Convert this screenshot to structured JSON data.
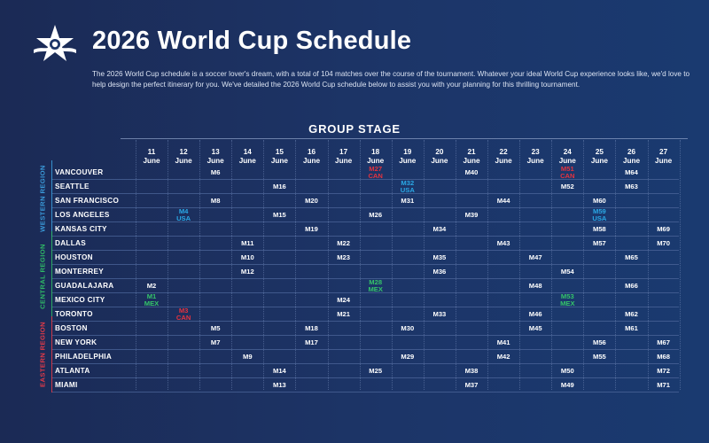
{
  "header": {
    "title": "2026 World Cup Schedule",
    "intro": "The 2026 World Cup schedule is a soccer lover's dream, with a total of 104 matches over the course of the tournament. Whatever your ideal World Cup experience looks like, we'd love to help design the perfect itinerary for you. We've detailed the 2026 World Cup schedule below to assist you with your planning for this thrilling tournament."
  },
  "schedule": {
    "section_title": "GROUP STAGE",
    "dates": [
      {
        "day": "11",
        "month": "June"
      },
      {
        "day": "12",
        "month": "June"
      },
      {
        "day": "13",
        "month": "June"
      },
      {
        "day": "14",
        "month": "June"
      },
      {
        "day": "15",
        "month": "June"
      },
      {
        "day": "16",
        "month": "June"
      },
      {
        "day": "17",
        "month": "June"
      },
      {
        "day": "18",
        "month": "June"
      },
      {
        "day": "19",
        "month": "June"
      },
      {
        "day": "20",
        "month": "June"
      },
      {
        "day": "21",
        "month": "June"
      },
      {
        "day": "22",
        "month": "June"
      },
      {
        "day": "23",
        "month": "June"
      },
      {
        "day": "24",
        "month": "June"
      },
      {
        "day": "25",
        "month": "June"
      },
      {
        "day": "26",
        "month": "June"
      },
      {
        "day": "27",
        "month": "June"
      }
    ],
    "regions": [
      {
        "name": "WESTERN REGION",
        "color": "#3a9ad9",
        "first_row": 0,
        "last_row": 4
      },
      {
        "name": "CENTRAL REGION",
        "color": "#2fb866",
        "first_row": 5,
        "last_row": 10
      },
      {
        "name": "EASTERN REGION",
        "color": "#e03a48",
        "first_row": 11,
        "last_row": 15
      }
    ],
    "host_colors": {
      "CAN": "#e5333f",
      "USA": "#2aa8e6",
      "MEX": "#35c46a"
    },
    "cities": [
      {
        "name": "VANCOUVER",
        "matches": [
          {
            "day": "13",
            "label": "M6"
          },
          {
            "day": "18",
            "label": "M27",
            "sub": "CAN",
            "host": "CAN"
          },
          {
            "day": "21",
            "label": "M40"
          },
          {
            "day": "24",
            "label": "M51",
            "sub": "CAN",
            "host": "CAN"
          },
          {
            "day": "26",
            "label": "M64"
          }
        ]
      },
      {
        "name": "SEATTLE",
        "matches": [
          {
            "day": "15",
            "label": "M16"
          },
          {
            "day": "19",
            "label": "M32",
            "sub": "USA",
            "host": "USA"
          },
          {
            "day": "24",
            "label": "M52"
          },
          {
            "day": "26",
            "label": "M63"
          }
        ]
      },
      {
        "name": "SAN FRANCISCO",
        "matches": [
          {
            "day": "13",
            "label": "M8"
          },
          {
            "day": "16",
            "label": "M20"
          },
          {
            "day": "19",
            "label": "M31"
          },
          {
            "day": "22",
            "label": "M44"
          },
          {
            "day": "25",
            "label": "M60"
          }
        ]
      },
      {
        "name": "LOS ANGELES",
        "matches": [
          {
            "day": "12",
            "label": "M4",
            "sub": "USA",
            "host": "USA"
          },
          {
            "day": "15",
            "label": "M15"
          },
          {
            "day": "18",
            "label": "M26"
          },
          {
            "day": "21",
            "label": "M39"
          },
          {
            "day": "25",
            "label": "M59",
            "sub": "USA",
            "host": "USA"
          }
        ]
      },
      {
        "name": "KANSAS CITY",
        "matches": [
          {
            "day": "16",
            "label": "M19"
          },
          {
            "day": "20",
            "label": "M34"
          },
          {
            "day": "25",
            "label": "M58"
          },
          {
            "day": "27",
            "label": "M69"
          }
        ]
      },
      {
        "name": "DALLAS",
        "matches": [
          {
            "day": "14",
            "label": "M11"
          },
          {
            "day": "17",
            "label": "M22"
          },
          {
            "day": "22",
            "label": "M43"
          },
          {
            "day": "25",
            "label": "M57"
          },
          {
            "day": "27",
            "label": "M70"
          }
        ]
      },
      {
        "name": "HOUSTON",
        "matches": [
          {
            "day": "14",
            "label": "M10"
          },
          {
            "day": "17",
            "label": "M23"
          },
          {
            "day": "20",
            "label": "M35"
          },
          {
            "day": "23",
            "label": "M47"
          },
          {
            "day": "26",
            "label": "M65"
          }
        ]
      },
      {
        "name": "MONTERREY",
        "matches": [
          {
            "day": "14",
            "label": "M12"
          },
          {
            "day": "20",
            "label": "M36"
          },
          {
            "day": "24",
            "label": "M54"
          }
        ]
      },
      {
        "name": "GUADALAJARA",
        "matches": [
          {
            "day": "11",
            "label": "M2"
          },
          {
            "day": "18",
            "label": "M28",
            "sub": "MEX",
            "host": "MEX"
          },
          {
            "day": "23",
            "label": "M48"
          },
          {
            "day": "26",
            "label": "M66"
          }
        ]
      },
      {
        "name": "MEXICO CITY",
        "matches": [
          {
            "day": "11",
            "label": "M1",
            "sub": "MEX",
            "host": "MEX"
          },
          {
            "day": "17",
            "label": "M24"
          },
          {
            "day": "24",
            "label": "M53",
            "sub": "MEX",
            "host": "MEX"
          }
        ]
      },
      {
        "name": "TORONTO",
        "matches": [
          {
            "day": "12",
            "label": "M3",
            "sub": "CAN",
            "host": "CAN"
          },
          {
            "day": "17",
            "label": "M21"
          },
          {
            "day": "20",
            "label": "M33"
          },
          {
            "day": "23",
            "label": "M46"
          },
          {
            "day": "26",
            "label": "M62"
          }
        ]
      },
      {
        "name": "BOSTON",
        "matches": [
          {
            "day": "13",
            "label": "M5"
          },
          {
            "day": "16",
            "label": "M18"
          },
          {
            "day": "19",
            "label": "M30"
          },
          {
            "day": "23",
            "label": "M45"
          },
          {
            "day": "26",
            "label": "M61"
          }
        ]
      },
      {
        "name": "NEW YORK",
        "matches": [
          {
            "day": "13",
            "label": "M7"
          },
          {
            "day": "16",
            "label": "M17"
          },
          {
            "day": "22",
            "label": "M41"
          },
          {
            "day": "25",
            "label": "M56"
          },
          {
            "day": "27",
            "label": "M67"
          }
        ]
      },
      {
        "name": "PHILADELPHIA",
        "matches": [
          {
            "day": "14",
            "label": "M9"
          },
          {
            "day": "19",
            "label": "M29"
          },
          {
            "day": "22",
            "label": "M42"
          },
          {
            "day": "25",
            "label": "M55"
          },
          {
            "day": "27",
            "label": "M68"
          }
        ]
      },
      {
        "name": "ATLANTA",
        "matches": [
          {
            "day": "15",
            "label": "M14"
          },
          {
            "day": "18",
            "label": "M25"
          },
          {
            "day": "21",
            "label": "M38"
          },
          {
            "day": "24",
            "label": "M50"
          },
          {
            "day": "27",
            "label": "M72"
          }
        ]
      },
      {
        "name": "MIAMI",
        "matches": [
          {
            "day": "15",
            "label": "M13"
          },
          {
            "day": "21",
            "label": "M37"
          },
          {
            "day": "24",
            "label": "M49"
          },
          {
            "day": "27",
            "label": "M71"
          }
        ]
      }
    ]
  }
}
